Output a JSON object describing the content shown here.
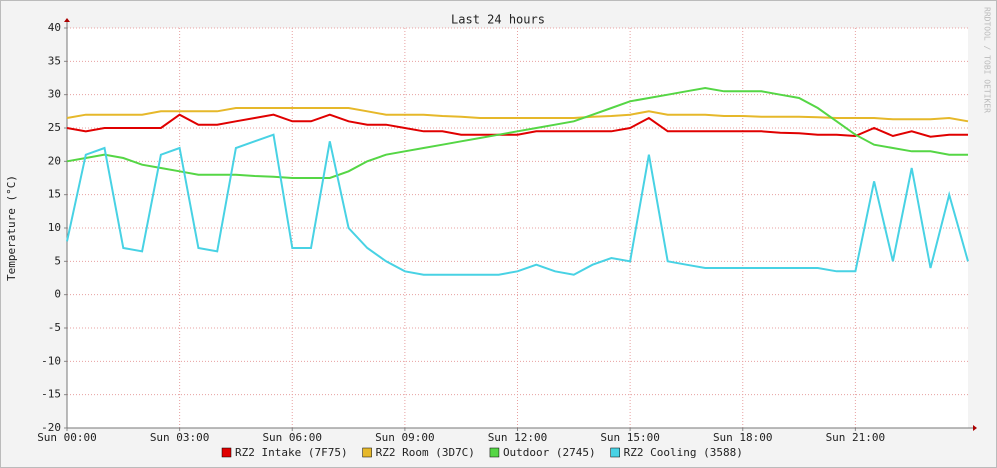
{
  "chart_data": {
    "type": "line",
    "title": "Last 24 hours",
    "y_label": "Temperature (°C)",
    "watermark": "RRDTOOL / TOBI OETIKER",
    "x": [
      0,
      0.5,
      1,
      1.5,
      2,
      2.5,
      3,
      3.5,
      4,
      4.5,
      5,
      5.5,
      6,
      6.5,
      7,
      7.5,
      8,
      8.5,
      9,
      9.5,
      10,
      10.5,
      11,
      11.5,
      12,
      12.5,
      13,
      13.5,
      14,
      14.5,
      15,
      15.5,
      16,
      16.5,
      17,
      17.5,
      18,
      18.5,
      19,
      19.5,
      20,
      20.5,
      21,
      21.5,
      22,
      22.5,
      23,
      23.5,
      24
    ],
    "xlim": [
      0,
      24
    ],
    "xticks": [
      {
        "value": 0,
        "label": "Sun 00:00"
      },
      {
        "value": 3,
        "label": "Sun 03:00"
      },
      {
        "value": 6,
        "label": "Sun 06:00"
      },
      {
        "value": 9,
        "label": "Sun 09:00"
      },
      {
        "value": 12,
        "label": "Sun 12:00"
      },
      {
        "value": 15,
        "label": "Sun 15:00"
      },
      {
        "value": 18,
        "label": "Sun 18:00"
      },
      {
        "value": 21,
        "label": "Sun 21:00"
      }
    ],
    "ylim": [
      -20,
      40
    ],
    "yticks": [
      -20,
      -15,
      -10,
      -5,
      0,
      5,
      10,
      15,
      20,
      25,
      30,
      35,
      40
    ],
    "grid": true,
    "series": [
      {
        "name": "RZ2 Intake (7F75)",
        "color": "#e00000",
        "values": [
          25,
          24.5,
          25,
          25,
          25,
          25,
          27,
          25.5,
          25.5,
          26,
          26.5,
          27,
          26,
          26,
          27,
          26,
          25.5,
          25.5,
          25,
          24.5,
          24.5,
          24,
          24,
          24,
          24,
          24.5,
          24.5,
          24.5,
          24.5,
          24.5,
          25,
          26.5,
          24.5,
          24.5,
          24.5,
          24.5,
          24.5,
          24.5,
          24.3,
          24.2,
          24,
          24,
          23.8,
          25,
          23.8,
          24.5,
          23.7,
          24,
          24
        ]
      },
      {
        "name": "RZ2 Room (3D7C)",
        "color": "#e6b82a",
        "values": [
          26.5,
          27,
          27,
          27,
          27,
          27.5,
          27.5,
          27.5,
          27.5,
          28,
          28,
          28,
          28,
          28,
          28,
          28,
          27.5,
          27,
          27,
          27,
          26.8,
          26.7,
          26.5,
          26.5,
          26.5,
          26.5,
          26.5,
          26.5,
          26.7,
          26.8,
          27,
          27.5,
          27,
          27,
          27,
          26.8,
          26.8,
          26.7,
          26.7,
          26.7,
          26.6,
          26.5,
          26.5,
          26.5,
          26.3,
          26.3,
          26.3,
          26.5,
          26
        ]
      },
      {
        "name": "Outdoor (2745)",
        "color": "#55d645",
        "values": [
          20,
          20.5,
          21,
          20.5,
          19.5,
          19,
          18.5,
          18,
          18,
          18,
          17.8,
          17.7,
          17.5,
          17.5,
          17.5,
          18.5,
          20,
          21,
          21.5,
          22,
          22.5,
          23,
          23.5,
          24,
          24.5,
          25,
          25.5,
          26,
          27,
          28,
          29,
          29.5,
          30,
          30.5,
          31,
          30.5,
          30.5,
          30.5,
          30,
          29.5,
          28,
          26,
          24,
          22.5,
          22,
          21.5,
          21.5,
          21,
          21
        ]
      },
      {
        "name": "RZ2 Cooling (3588)",
        "color": "#48d2e4",
        "values": [
          8,
          21,
          22,
          7,
          6.5,
          21,
          22,
          7,
          6.5,
          22,
          23,
          24,
          7,
          7,
          23,
          10,
          7,
          5,
          3.5,
          3,
          3,
          3,
          3,
          3,
          3.5,
          4.5,
          3.5,
          3,
          4.5,
          5.5,
          5,
          21,
          5,
          4.5,
          4,
          4,
          4,
          4,
          4,
          4,
          4,
          3.5,
          3.5,
          17,
          5,
          19,
          4,
          15,
          5
        ]
      }
    ]
  }
}
